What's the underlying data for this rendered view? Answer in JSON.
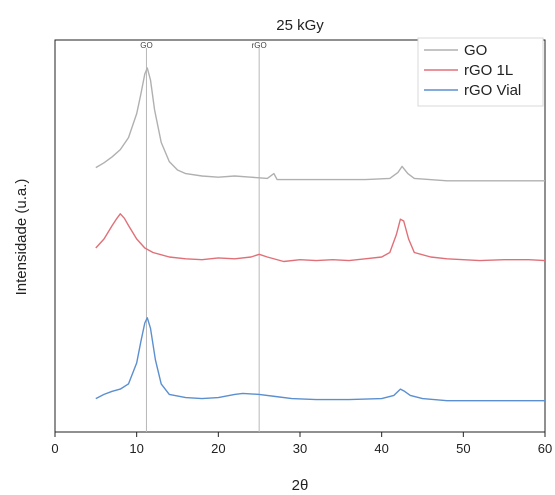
{
  "chart_data": {
    "type": "line",
    "title": "25 kGy",
    "xlabel": "2θ",
    "ylabel": "Intensidade (u.a.)",
    "xlim": [
      0,
      60
    ],
    "xticks": [
      0,
      10,
      20,
      30,
      40,
      50,
      60
    ],
    "y_units": "arbitrary",
    "grid": false,
    "legend_position": "top-right",
    "reference_lines": [
      {
        "label": "GO",
        "x": 11.2
      },
      {
        "label": "rGO",
        "x": 25.0
      }
    ],
    "series": [
      {
        "name": "GO",
        "color": "#b0b0b0",
        "points": [
          [
            5,
            0.17
          ],
          [
            6,
            0.21
          ],
          [
            7,
            0.26
          ],
          [
            8,
            0.32
          ],
          [
            9,
            0.42
          ],
          [
            10,
            0.62
          ],
          [
            10.5,
            0.78
          ],
          [
            11,
            0.95
          ],
          [
            11.3,
            1.0
          ],
          [
            11.7,
            0.9
          ],
          [
            12.2,
            0.65
          ],
          [
            13,
            0.38
          ],
          [
            14,
            0.22
          ],
          [
            15,
            0.15
          ],
          [
            16,
            0.12
          ],
          [
            18,
            0.1
          ],
          [
            20,
            0.09
          ],
          [
            22,
            0.1
          ],
          [
            24,
            0.09
          ],
          [
            26,
            0.08
          ],
          [
            26.8,
            0.12
          ],
          [
            27.2,
            0.07
          ],
          [
            30,
            0.07
          ],
          [
            34,
            0.07
          ],
          [
            38,
            0.07
          ],
          [
            41,
            0.08
          ],
          [
            42,
            0.13
          ],
          [
            42.5,
            0.18
          ],
          [
            43.2,
            0.12
          ],
          [
            44,
            0.08
          ],
          [
            48,
            0.06
          ],
          [
            55,
            0.06
          ],
          [
            60,
            0.06
          ]
        ]
      },
      {
        "name": "rGO 1L",
        "color": "#e07078",
        "points": [
          [
            5,
            0.3
          ],
          [
            6,
            0.4
          ],
          [
            7,
            0.55
          ],
          [
            7.5,
            0.62
          ],
          [
            8,
            0.68
          ],
          [
            8.5,
            0.63
          ],
          [
            9,
            0.55
          ],
          [
            10,
            0.4
          ],
          [
            11,
            0.3
          ],
          [
            12,
            0.25
          ],
          [
            14,
            0.2
          ],
          [
            16,
            0.18
          ],
          [
            18,
            0.17
          ],
          [
            20,
            0.19
          ],
          [
            22,
            0.18
          ],
          [
            24,
            0.2
          ],
          [
            25,
            0.23
          ],
          [
            26,
            0.2
          ],
          [
            28,
            0.15
          ],
          [
            30,
            0.17
          ],
          [
            32,
            0.16
          ],
          [
            34,
            0.17
          ],
          [
            36,
            0.16
          ],
          [
            38,
            0.18
          ],
          [
            40,
            0.2
          ],
          [
            41,
            0.25
          ],
          [
            41.8,
            0.45
          ],
          [
            42.3,
            0.62
          ],
          [
            42.7,
            0.6
          ],
          [
            43.3,
            0.4
          ],
          [
            44,
            0.25
          ],
          [
            46,
            0.2
          ],
          [
            48,
            0.18
          ],
          [
            50,
            0.17
          ],
          [
            52,
            0.16
          ],
          [
            55,
            0.17
          ],
          [
            58,
            0.17
          ],
          [
            60,
            0.16
          ]
        ]
      },
      {
        "name": "rGO Vial",
        "color": "#5b8fd0",
        "points": [
          [
            5,
            0.08
          ],
          [
            6,
            0.12
          ],
          [
            7,
            0.15
          ],
          [
            8,
            0.17
          ],
          [
            9,
            0.22
          ],
          [
            10,
            0.42
          ],
          [
            10.5,
            0.62
          ],
          [
            11,
            0.8
          ],
          [
            11.3,
            0.85
          ],
          [
            11.7,
            0.75
          ],
          [
            12.3,
            0.45
          ],
          [
            13,
            0.22
          ],
          [
            14,
            0.12
          ],
          [
            16,
            0.09
          ],
          [
            18,
            0.08
          ],
          [
            20,
            0.09
          ],
          [
            22,
            0.12
          ],
          [
            23,
            0.13
          ],
          [
            25,
            0.12
          ],
          [
            27,
            0.1
          ],
          [
            29,
            0.08
          ],
          [
            32,
            0.07
          ],
          [
            36,
            0.07
          ],
          [
            40,
            0.08
          ],
          [
            41.5,
            0.11
          ],
          [
            42.3,
            0.17
          ],
          [
            42.8,
            0.15
          ],
          [
            43.5,
            0.11
          ],
          [
            45,
            0.08
          ],
          [
            48,
            0.06
          ],
          [
            52,
            0.06
          ],
          [
            56,
            0.06
          ],
          [
            60,
            0.06
          ]
        ]
      }
    ]
  }
}
